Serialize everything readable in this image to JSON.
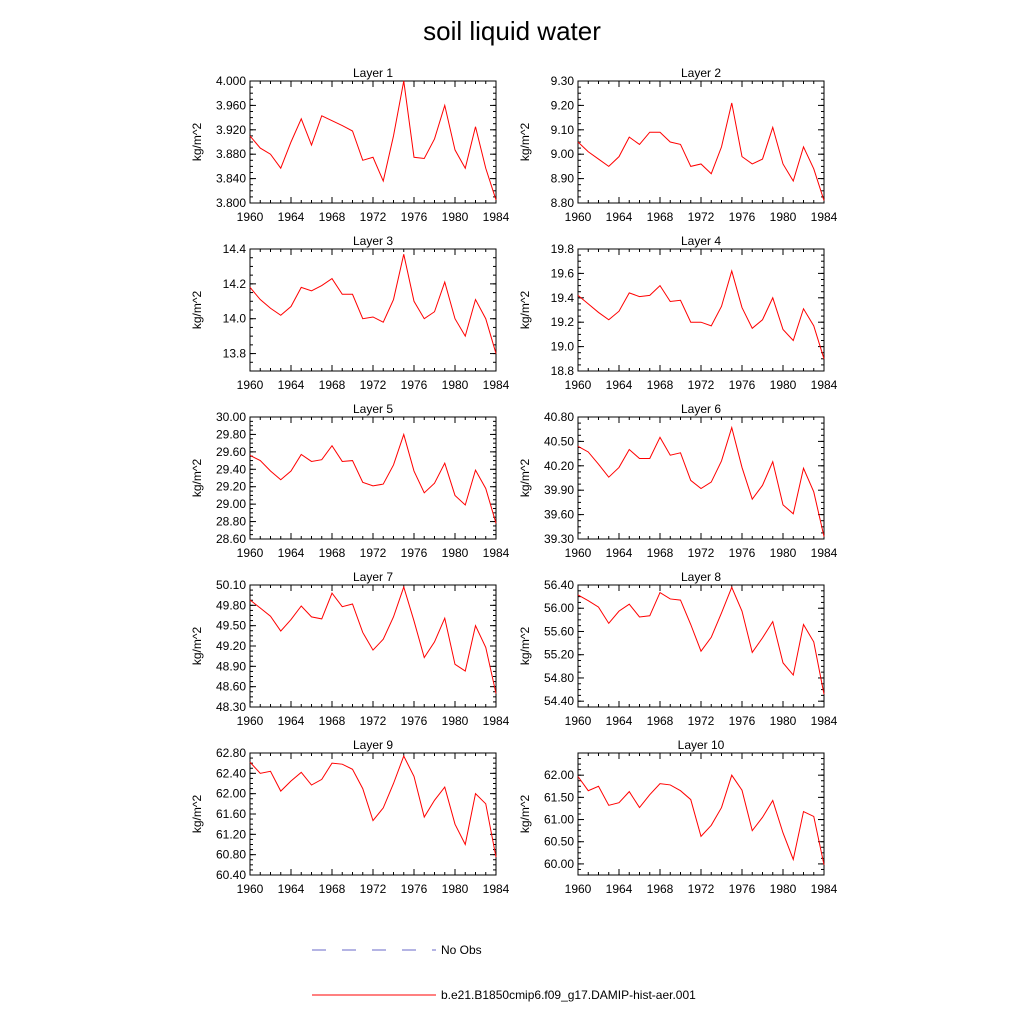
{
  "figure_title": "soil liquid water",
  "colors": {
    "model": "#ff0000",
    "obs": "#6a6ac8",
    "axis": "#000000"
  },
  "legend": {
    "obs_label": "No Obs",
    "model_label": "b.e21.B1850cmip6.f09_g17.DAMIP-hist-aer.001"
  },
  "chart_data": [
    {
      "type": "line",
      "title": "Layer 1",
      "ylabel": "kg/m^2",
      "grid": false,
      "x_ticks": [
        "1960",
        "1964",
        "1968",
        "1972",
        "1976",
        "1980",
        "1984"
      ],
      "xlim": [
        1960,
        1984
      ],
      "ylim": [
        3.8,
        4.0
      ],
      "y_ticks": [
        "3.800",
        "3.840",
        "3.880",
        "3.920",
        "3.960",
        "4.000"
      ],
      "series": [
        {
          "x": [
            1960,
            1961,
            1962,
            1963,
            1964,
            1965,
            1966,
            1967,
            1968,
            1969,
            1970,
            1971,
            1972,
            1973,
            1974,
            1975,
            1976,
            1977,
            1978,
            1979,
            1980,
            1981,
            1982,
            1983,
            1984
          ],
          "values": [
            3.91,
            3.89,
            3.88,
            3.857,
            3.9,
            3.938,
            3.895,
            3.943,
            3.935,
            3.927,
            3.918,
            3.87,
            3.875,
            3.836,
            3.91,
            4.0,
            3.875,
            3.873,
            3.905,
            3.96,
            3.887,
            3.857,
            3.925,
            3.857,
            3.805
          ]
        }
      ]
    },
    {
      "type": "line",
      "title": "Layer 2",
      "ylabel": "kg/m^2",
      "grid": false,
      "x_ticks": [
        "1960",
        "1964",
        "1968",
        "1972",
        "1976",
        "1980",
        "1984"
      ],
      "xlim": [
        1960,
        1984
      ],
      "ylim": [
        8.8,
        9.3
      ],
      "y_ticks": [
        "8.80",
        "8.90",
        "9.00",
        "9.10",
        "9.20",
        "9.30"
      ],
      "series": [
        {
          "x": [
            1960,
            1961,
            1962,
            1963,
            1964,
            1965,
            1966,
            1967,
            1968,
            1969,
            1970,
            1971,
            1972,
            1973,
            1974,
            1975,
            1976,
            1977,
            1978,
            1979,
            1980,
            1981,
            1982,
            1983,
            1984
          ],
          "values": [
            9.05,
            9.01,
            8.98,
            8.95,
            8.99,
            9.07,
            9.04,
            9.09,
            9.09,
            9.05,
            9.04,
            8.95,
            8.96,
            8.92,
            9.03,
            9.21,
            8.99,
            8.96,
            8.98,
            9.11,
            8.96,
            8.89,
            9.03,
            8.94,
            8.81
          ]
        }
      ]
    },
    {
      "type": "line",
      "title": "Layer 3",
      "ylabel": "kg/m^2",
      "grid": false,
      "x_ticks": [
        "1960",
        "1964",
        "1968",
        "1972",
        "1976",
        "1980",
        "1984"
      ],
      "xlim": [
        1960,
        1984
      ],
      "ylim": [
        13.7,
        14.4
      ],
      "y_ticks": [
        "13.8",
        "14.0",
        "14.2",
        "14.4"
      ],
      "series": [
        {
          "x": [
            1960,
            1961,
            1962,
            1963,
            1964,
            1965,
            1966,
            1967,
            1968,
            1969,
            1970,
            1971,
            1972,
            1973,
            1974,
            1975,
            1976,
            1977,
            1978,
            1979,
            1980,
            1981,
            1982,
            1983,
            1984
          ],
          "values": [
            14.18,
            14.11,
            14.06,
            14.02,
            14.07,
            14.18,
            14.16,
            14.19,
            14.23,
            14.14,
            14.14,
            14.0,
            14.01,
            13.98,
            14.11,
            14.37,
            14.1,
            14.0,
            14.04,
            14.21,
            14.0,
            13.9,
            14.11,
            14.0,
            13.8
          ]
        }
      ]
    },
    {
      "type": "line",
      "title": "Layer 4",
      "ylabel": "kg/m^2",
      "grid": false,
      "x_ticks": [
        "1960",
        "1964",
        "1968",
        "1972",
        "1976",
        "1980",
        "1984"
      ],
      "xlim": [
        1960,
        1984
      ],
      "ylim": [
        18.8,
        19.8
      ],
      "y_ticks": [
        "18.8",
        "19.0",
        "19.2",
        "19.4",
        "19.6",
        "19.8"
      ],
      "series": [
        {
          "x": [
            1960,
            1961,
            1962,
            1963,
            1964,
            1965,
            1966,
            1967,
            1968,
            1969,
            1970,
            1971,
            1972,
            1973,
            1974,
            1975,
            1976,
            1977,
            1978,
            1979,
            1980,
            1981,
            1982,
            1983,
            1984
          ],
          "values": [
            19.42,
            19.35,
            19.28,
            19.22,
            19.29,
            19.44,
            19.41,
            19.42,
            19.5,
            19.37,
            19.38,
            19.2,
            19.2,
            19.17,
            19.33,
            19.62,
            19.32,
            19.15,
            19.22,
            19.4,
            19.14,
            19.05,
            19.31,
            19.17,
            18.9
          ]
        }
      ]
    },
    {
      "type": "line",
      "title": "Layer 5",
      "ylabel": "kg/m^2",
      "grid": false,
      "x_ticks": [
        "1960",
        "1964",
        "1968",
        "1972",
        "1976",
        "1980",
        "1984"
      ],
      "xlim": [
        1960,
        1984
      ],
      "ylim": [
        28.6,
        30.0
      ],
      "y_ticks": [
        "28.60",
        "28.80",
        "29.00",
        "29.20",
        "29.40",
        "29.60",
        "29.80",
        "30.00"
      ],
      "series": [
        {
          "x": [
            1960,
            1961,
            1962,
            1963,
            1964,
            1965,
            1966,
            1967,
            1968,
            1969,
            1970,
            1971,
            1972,
            1973,
            1974,
            1975,
            1976,
            1977,
            1978,
            1979,
            1980,
            1981,
            1982,
            1983,
            1984
          ],
          "values": [
            29.56,
            29.5,
            29.38,
            29.28,
            29.38,
            29.57,
            29.49,
            29.51,
            29.67,
            29.49,
            29.5,
            29.25,
            29.21,
            29.23,
            29.45,
            29.8,
            29.38,
            29.13,
            29.24,
            29.47,
            29.1,
            28.99,
            29.39,
            29.18,
            28.78
          ]
        }
      ]
    },
    {
      "type": "line",
      "title": "Layer 6",
      "ylabel": "kg/m^2",
      "grid": false,
      "x_ticks": [
        "1960",
        "1964",
        "1968",
        "1972",
        "1976",
        "1980",
        "1984"
      ],
      "xlim": [
        1960,
        1984
      ],
      "ylim": [
        39.3,
        40.8
      ],
      "y_ticks": [
        "39.30",
        "39.60",
        "39.90",
        "40.20",
        "40.50",
        "40.80"
      ],
      "series": [
        {
          "x": [
            1960,
            1961,
            1962,
            1963,
            1964,
            1965,
            1966,
            1967,
            1968,
            1969,
            1970,
            1971,
            1972,
            1973,
            1974,
            1975,
            1976,
            1977,
            1978,
            1979,
            1980,
            1981,
            1982,
            1983,
            1984
          ],
          "values": [
            40.44,
            40.37,
            40.22,
            40.06,
            40.18,
            40.4,
            40.29,
            40.29,
            40.55,
            40.33,
            40.36,
            40.02,
            39.92,
            40.0,
            40.26,
            40.67,
            40.18,
            39.79,
            39.96,
            40.25,
            39.72,
            39.61,
            40.17,
            39.88,
            39.33
          ]
        }
      ]
    },
    {
      "type": "line",
      "title": "Layer 7",
      "ylabel": "kg/m^2",
      "grid": false,
      "x_ticks": [
        "1960",
        "1964",
        "1968",
        "1972",
        "1976",
        "1980",
        "1984"
      ],
      "xlim": [
        1960,
        1984
      ],
      "ylim": [
        48.3,
        50.1
      ],
      "y_ticks": [
        "48.30",
        "48.60",
        "48.90",
        "49.20",
        "49.50",
        "49.80",
        "50.10"
      ],
      "series": [
        {
          "x": [
            1960,
            1961,
            1962,
            1963,
            1964,
            1965,
            1966,
            1967,
            1968,
            1969,
            1970,
            1971,
            1972,
            1973,
            1974,
            1975,
            1976,
            1977,
            1978,
            1979,
            1980,
            1981,
            1982,
            1983,
            1984
          ],
          "values": [
            49.88,
            49.76,
            49.64,
            49.42,
            49.59,
            49.79,
            49.63,
            49.6,
            49.98,
            49.78,
            49.82,
            49.4,
            49.14,
            49.3,
            49.63,
            50.07,
            49.57,
            49.03,
            49.26,
            49.61,
            48.93,
            48.83,
            49.5,
            49.18,
            48.5
          ]
        }
      ]
    },
    {
      "type": "line",
      "title": "Layer 8",
      "ylabel": "kg/m^2",
      "grid": false,
      "x_ticks": [
        "1960",
        "1964",
        "1968",
        "1972",
        "1976",
        "1980",
        "1984"
      ],
      "xlim": [
        1960,
        1984
      ],
      "ylim": [
        54.3,
        56.4
      ],
      "y_ticks": [
        "54.40",
        "54.80",
        "55.20",
        "55.60",
        "56.00",
        "56.40"
      ],
      "series": [
        {
          "x": [
            1960,
            1961,
            1962,
            1963,
            1964,
            1965,
            1966,
            1967,
            1968,
            1969,
            1970,
            1971,
            1972,
            1973,
            1974,
            1975,
            1976,
            1977,
            1978,
            1979,
            1980,
            1981,
            1982,
            1983,
            1984
          ],
          "values": [
            56.23,
            56.13,
            56.02,
            55.74,
            55.95,
            56.07,
            55.85,
            55.87,
            56.27,
            56.16,
            56.14,
            55.72,
            55.26,
            55.5,
            55.92,
            56.36,
            55.95,
            55.24,
            55.49,
            55.77,
            55.06,
            54.85,
            55.72,
            55.42,
            54.52
          ]
        }
      ]
    },
    {
      "type": "line",
      "title": "Layer 9",
      "ylabel": "kg/m^2",
      "grid": false,
      "x_ticks": [
        "1960",
        "1964",
        "1968",
        "1972",
        "1976",
        "1980",
        "1984"
      ],
      "xlim": [
        1960,
        1984
      ],
      "ylim": [
        60.4,
        62.8
      ],
      "y_ticks": [
        "60.40",
        "60.80",
        "61.20",
        "61.60",
        "62.00",
        "62.40",
        "62.80"
      ],
      "series": [
        {
          "x": [
            1960,
            1961,
            1962,
            1963,
            1964,
            1965,
            1966,
            1967,
            1968,
            1969,
            1970,
            1971,
            1972,
            1973,
            1974,
            1975,
            1976,
            1977,
            1978,
            1979,
            1980,
            1981,
            1982,
            1983,
            1984
          ],
          "values": [
            62.62,
            62.4,
            62.44,
            62.05,
            62.25,
            62.42,
            62.17,
            62.28,
            62.6,
            62.58,
            62.48,
            62.1,
            61.47,
            61.72,
            62.2,
            62.74,
            62.34,
            61.54,
            61.87,
            62.13,
            61.4,
            61.0,
            62.0,
            61.8,
            60.75
          ]
        }
      ]
    },
    {
      "type": "line",
      "title": "Layer 10",
      "ylabel": "kg/m^2",
      "grid": false,
      "x_ticks": [
        "1960",
        "1964",
        "1968",
        "1972",
        "1976",
        "1980",
        "1984"
      ],
      "xlim": [
        1960,
        1984
      ],
      "ylim": [
        59.75,
        62.5
      ],
      "y_ticks": [
        "60.00",
        "60.50",
        "61.00",
        "61.50",
        "62.00"
      ],
      "series": [
        {
          "x": [
            1960,
            1961,
            1962,
            1963,
            1964,
            1965,
            1966,
            1967,
            1968,
            1969,
            1970,
            1971,
            1972,
            1973,
            1974,
            1975,
            1976,
            1977,
            1978,
            1979,
            1980,
            1981,
            1982,
            1983,
            1984
          ],
          "values": [
            61.97,
            61.65,
            61.75,
            61.32,
            61.38,
            61.63,
            61.27,
            61.56,
            61.81,
            61.78,
            61.65,
            61.45,
            60.62,
            60.87,
            61.27,
            62.0,
            61.66,
            60.75,
            61.05,
            61.43,
            60.7,
            60.1,
            61.18,
            61.07,
            59.98
          ]
        }
      ]
    }
  ]
}
